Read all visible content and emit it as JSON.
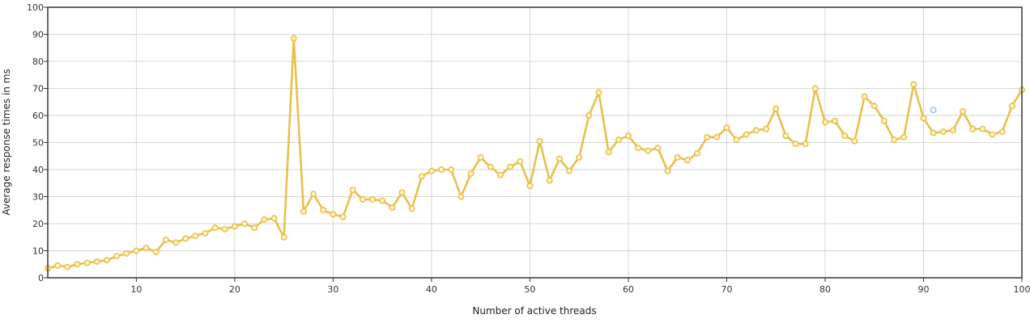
{
  "chart_data": {
    "type": "line",
    "xlabel": "Number of active threads",
    "ylabel": "Average response times in ms",
    "xlim": [
      1,
      100
    ],
    "ylim": [
      0,
      100
    ],
    "x_ticks": [
      "10",
      "20",
      "30",
      "40",
      "50",
      "60",
      "70",
      "80",
      "90",
      "100"
    ],
    "y_ticks": [
      "0",
      "10",
      "20",
      "30",
      "40",
      "50",
      "60",
      "70",
      "80",
      "90",
      "100"
    ],
    "grid": true,
    "legend": "none",
    "series": [
      {
        "color": "#e8c04f",
        "points": [
          [
            1,
            3.5
          ],
          [
            2,
            4.5
          ],
          [
            3,
            4
          ],
          [
            4,
            5
          ],
          [
            5,
            5.5
          ],
          [
            6,
            6
          ],
          [
            7,
            6.5
          ],
          [
            8,
            8
          ],
          [
            9,
            9
          ],
          [
            10,
            10
          ],
          [
            11,
            11
          ],
          [
            12,
            9.5
          ],
          [
            13,
            14
          ],
          [
            14,
            13
          ],
          [
            15,
            14.5
          ],
          [
            16,
            15.5
          ],
          [
            17,
            16.5
          ],
          [
            18,
            18.5
          ],
          [
            19,
            18
          ],
          [
            20,
            19
          ],
          [
            21,
            20
          ],
          [
            22,
            18.5
          ],
          [
            23,
            21.5
          ],
          [
            24,
            22
          ],
          [
            25,
            15
          ],
          [
            26,
            88.5
          ],
          [
            27,
            24.5
          ],
          [
            28,
            31
          ],
          [
            29,
            25
          ],
          [
            30,
            23.5
          ],
          [
            31,
            22.5
          ],
          [
            32,
            32.5
          ],
          [
            33,
            29
          ],
          [
            34,
            29
          ],
          [
            35,
            28.5
          ],
          [
            36,
            26
          ],
          [
            37,
            31.5
          ],
          [
            38,
            25.5
          ],
          [
            39,
            37.5
          ],
          [
            40,
            39.5
          ],
          [
            41,
            40
          ],
          [
            42,
            40
          ],
          [
            43,
            30
          ],
          [
            44,
            38.5
          ],
          [
            45,
            44.5
          ],
          [
            46,
            41
          ],
          [
            47,
            38
          ],
          [
            48,
            41
          ],
          [
            49,
            43
          ],
          [
            50,
            34
          ],
          [
            51,
            50.5
          ],
          [
            52,
            36
          ],
          [
            53,
            44
          ],
          [
            54,
            39.5
          ],
          [
            55,
            44.5
          ],
          [
            56,
            60
          ],
          [
            57,
            68.5
          ],
          [
            58,
            46.5
          ],
          [
            59,
            51
          ],
          [
            60,
            52.5
          ],
          [
            61,
            48
          ],
          [
            62,
            47
          ],
          [
            63,
            48
          ],
          [
            64,
            39.5
          ],
          [
            65,
            44.5
          ],
          [
            66,
            43.5
          ],
          [
            67,
            46
          ],
          [
            68,
            52
          ],
          [
            69,
            52
          ],
          [
            70,
            55.5
          ],
          [
            71,
            51
          ],
          [
            72,
            53
          ],
          [
            73,
            54.5
          ],
          [
            74,
            55
          ],
          [
            75,
            62.5
          ],
          [
            76,
            52.5
          ],
          [
            77,
            49.5
          ],
          [
            78,
            49.5
          ],
          [
            79,
            70
          ],
          [
            80,
            57.5
          ],
          [
            81,
            58
          ],
          [
            82,
            52.5
          ],
          [
            83,
            50.5
          ],
          [
            84,
            67
          ],
          [
            85,
            63.5
          ],
          [
            86,
            58
          ],
          [
            87,
            51
          ],
          [
            88,
            52
          ],
          [
            89,
            71.5
          ],
          [
            90,
            59
          ],
          [
            91,
            53.5
          ],
          [
            92,
            54
          ],
          [
            93,
            54.5
          ],
          [
            94,
            61.5
          ],
          [
            95,
            55
          ],
          [
            96,
            55
          ],
          [
            97,
            53
          ],
          [
            98,
            54
          ],
          [
            99,
            63.5
          ],
          [
            100,
            69.5
          ]
        ]
      },
      {
        "color": "#9fc6f2",
        "points": [
          [
            91,
            62
          ]
        ]
      }
    ]
  }
}
